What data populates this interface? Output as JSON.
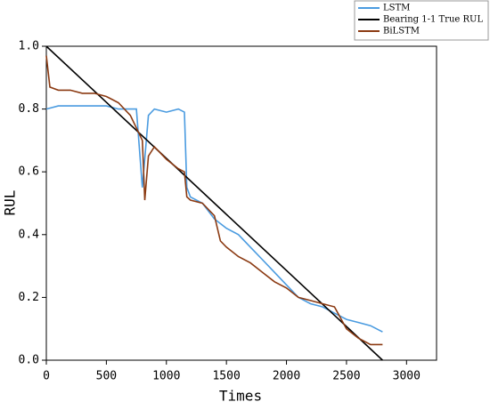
{
  "chart_data": {
    "type": "line",
    "x_label": "Times",
    "y_label": "RUL",
    "xlim": [
      0,
      3250
    ],
    "ylim": [
      0,
      1
    ],
    "xticks": [
      0,
      500,
      1000,
      1500,
      2000,
      2500,
      3000
    ],
    "yticks": [
      {
        "value": 0,
        "label": "0.0"
      },
      0.2,
      0.4,
      0.6,
      0.8,
      {
        "value": 1,
        "label": "1.0"
      }
    ],
    "series": [
      {
        "name": "LSTM",
        "color": "#4a9be0",
        "x": [
          0,
          100,
          200,
          300,
          400,
          500,
          600,
          700,
          750,
          800,
          850,
          900,
          1000,
          1100,
          1150,
          1170,
          1200,
          1300,
          1400,
          1500,
          1600,
          1700,
          1800,
          1900,
          2000,
          2100,
          2200,
          2300,
          2400,
          2500,
          2600,
          2700,
          2800
        ],
        "values": [
          0.8,
          0.81,
          0.81,
          0.81,
          0.81,
          0.81,
          0.8,
          0.8,
          0.8,
          0.55,
          0.78,
          0.8,
          0.79,
          0.8,
          0.79,
          0.55,
          0.52,
          0.5,
          0.45,
          0.42,
          0.4,
          0.36,
          0.32,
          0.28,
          0.24,
          0.2,
          0.18,
          0.17,
          0.15,
          0.13,
          0.12,
          0.11,
          0.09
        ]
      },
      {
        "name": "Bearing 1-1 True RUL",
        "color": "#000000",
        "x": [
          0,
          2800
        ],
        "values": [
          1,
          0
        ]
      },
      {
        "name": "BiLSTM",
        "color": "#8b3a12",
        "x": [
          0,
          30,
          100,
          200,
          300,
          400,
          500,
          600,
          700,
          800,
          820,
          850,
          900,
          1000,
          1100,
          1150,
          1170,
          1200,
          1300,
          1400,
          1450,
          1500,
          1600,
          1700,
          1800,
          1900,
          2000,
          2100,
          2200,
          2300,
          2400,
          2500,
          2600,
          2700,
          2800
        ],
        "values": [
          0.97,
          0.87,
          0.86,
          0.86,
          0.85,
          0.85,
          0.84,
          0.82,
          0.78,
          0.7,
          0.51,
          0.65,
          0.68,
          0.64,
          0.61,
          0.6,
          0.52,
          0.51,
          0.5,
          0.46,
          0.38,
          0.36,
          0.33,
          0.31,
          0.28,
          0.25,
          0.23,
          0.2,
          0.19,
          0.18,
          0.17,
          0.1,
          0.07,
          0.05,
          0.05
        ]
      }
    ]
  }
}
